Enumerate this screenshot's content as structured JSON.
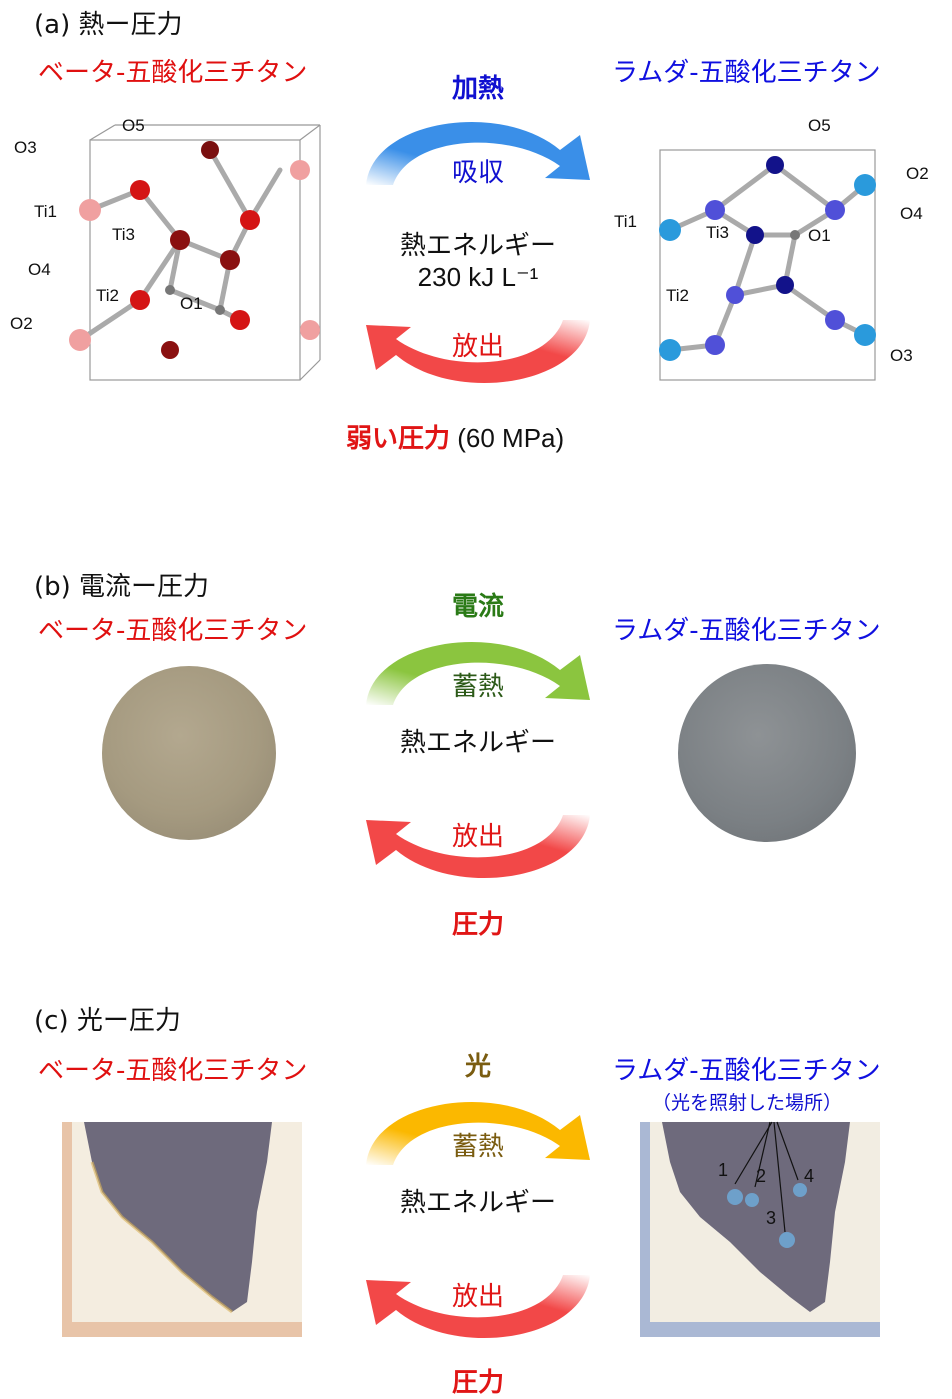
{
  "panel_a": {
    "title": "(a) 熱ー圧力",
    "left_name": "ベータ-五酸化三チタン",
    "right_name": "ラムダ-五酸化三チタン",
    "top_arrow_label": "加熱",
    "top_inner_label": "吸収",
    "center_line1": "熱エネルギー",
    "center_line2": "230 kJ L⁻¹",
    "bottom_inner_label": "放出",
    "bottom_label_bold": "弱い圧力",
    "bottom_label_rest": " (60 MPa)",
    "left_atoms": [
      "O5",
      "O3",
      "Ti1",
      "Ti3",
      "O4",
      "Ti2",
      "O1",
      "O2"
    ],
    "right_atoms": [
      "O5",
      "O2",
      "Ti1",
      "Ti3",
      "O4",
      "O1",
      "Ti2",
      "O3"
    ]
  },
  "panel_b": {
    "title": "(b) 電流ー圧力",
    "left_name": "ベータ-五酸化三チタン",
    "right_name": "ラムダ-五酸化三チタン",
    "top_arrow_label": "電流",
    "top_inner_label": "蓄熱",
    "center_line1": "熱エネルギー",
    "bottom_inner_label": "放出",
    "bottom_label": "圧力"
  },
  "panel_c": {
    "title": "(c) 光ー圧力",
    "left_name": "ベータ-五酸化三チタン",
    "right_name": "ラムダ-五酸化三チタン",
    "right_subtitle": "（光を照射した場所）",
    "top_arrow_label": "光",
    "top_inner_label": "蓄熱",
    "center_line1": "熱エネルギー",
    "bottom_inner_label": "放出",
    "bottom_label": "圧力",
    "spot_labels": [
      "1",
      "2",
      "3",
      "4"
    ]
  },
  "colors": {
    "beta_red": "#e01010",
    "lambda_blue": "#1010e0",
    "arrow_blue": "#3a8fe8",
    "arrow_red": "#f24848",
    "arrow_green": "#8bc53f",
    "arrow_gold": "#fbb800"
  }
}
